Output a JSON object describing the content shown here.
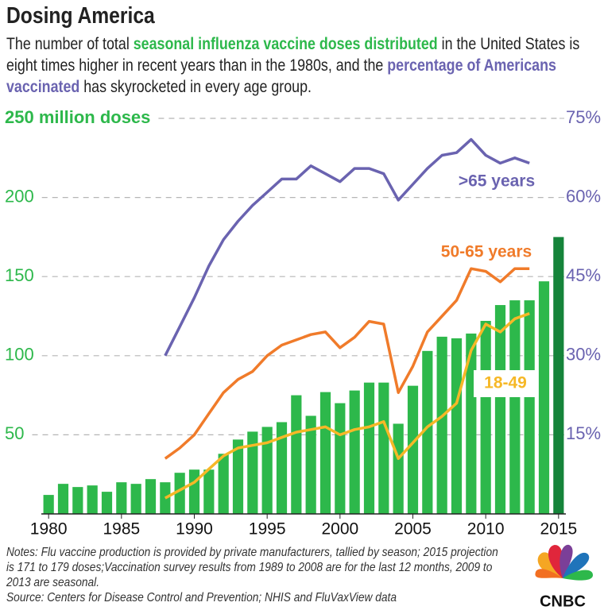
{
  "chart_data": {
    "type": "bar",
    "title": "Dosing America",
    "subtitle": [
      "The number of total ",
      "seasonal influenza vaccine doses distributed",
      " in the United States is eight times higher in recent years than in the 1980s, and the ",
      "percentage of Americans vaccinated",
      " has skyrocketed in every age group."
    ],
    "x": [
      1980,
      1981,
      1982,
      1983,
      1984,
      1985,
      1986,
      1987,
      1988,
      1989,
      1990,
      1991,
      1992,
      1993,
      1994,
      1995,
      1996,
      1997,
      1998,
      1999,
      2000,
      2001,
      2002,
      2003,
      2004,
      2005,
      2006,
      2007,
      2008,
      2009,
      2010,
      2011,
      2012,
      2013,
      2014,
      2015
    ],
    "xlim": [
      1979.5,
      2015.5
    ],
    "xticks": [
      1980,
      1985,
      1990,
      1995,
      2000,
      2005,
      2010,
      2015
    ],
    "ylim": [
      0,
      250
    ],
    "yticks": [
      50,
      100,
      150,
      200,
      {
        "value": 250,
        "label": "250 million doses"
      }
    ],
    "y2lim": [
      0,
      75
    ],
    "y2ticks": [
      {
        "value": 15,
        "label": "15%"
      },
      {
        "value": 30,
        "label": "30%"
      },
      {
        "value": 45,
        "label": "45%"
      },
      {
        "value": 60,
        "label": "60%"
      },
      {
        "value": 75,
        "label": "75%"
      }
    ],
    "grid": true,
    "values": [
      12,
      19,
      17,
      18,
      14,
      20,
      19,
      22,
      20,
      26,
      28,
      28,
      38,
      47,
      52,
      55,
      58,
      75,
      62,
      77,
      70,
      78,
      83,
      83,
      57,
      81,
      103,
      112,
      111,
      114,
      122,
      132,
      135,
      135,
      147,
      175
    ],
    "bar_colors": [
      "#2db84b",
      "#2db84b",
      "#2db84b",
      "#2db84b",
      "#2db84b",
      "#2db84b",
      "#2db84b",
      "#2db84b",
      "#2db84b",
      "#2db84b",
      "#2db84b",
      "#2db84b",
      "#2db84b",
      "#2db84b",
      "#2db84b",
      "#2db84b",
      "#2db84b",
      "#2db84b",
      "#2db84b",
      "#2db84b",
      "#2db84b",
      "#2db84b",
      "#2db84b",
      "#2db84b",
      "#2db84b",
      "#2db84b",
      "#2db84b",
      "#2db84b",
      "#2db84b",
      "#2db84b",
      "#2db84b",
      "#2db84b",
      "#2db84b",
      "#2db84b",
      "#2db84b",
      "#15843a"
    ],
    "series": [
      {
        "name": ">65 years",
        "color": "#6a63b0",
        "axis": "y2",
        "type": "line",
        "values": [
          null,
          null,
          null,
          null,
          null,
          null,
          null,
          null,
          30,
          35.5,
          41,
          47,
          52,
          55.5,
          58.5,
          61,
          63.5,
          63.5,
          66,
          64.5,
          63,
          65.5,
          65.5,
          64.5,
          59.5,
          62.5,
          65.5,
          68,
          68.5,
          71,
          68,
          66.5,
          67.5,
          66.5,
          null,
          null
        ]
      },
      {
        "name": "50-65 years",
        "color": "#f07b2a",
        "axis": "y2",
        "type": "line",
        "values": [
          null,
          null,
          null,
          null,
          null,
          null,
          null,
          null,
          10.5,
          12.5,
          15,
          19,
          23,
          25.5,
          27,
          30,
          32,
          33,
          34,
          34.5,
          31.5,
          33.5,
          36.5,
          36,
          23,
          28,
          34.5,
          37.5,
          40.5,
          46.5,
          46,
          44,
          46.5,
          46.5,
          null,
          null
        ]
      },
      {
        "name": "18-49",
        "color": "#f6b827",
        "axis": "y2",
        "type": "line",
        "values": [
          null,
          null,
          null,
          null,
          null,
          null,
          null,
          null,
          3,
          4.5,
          6,
          8.5,
          11,
          12.5,
          13,
          13.5,
          14.5,
          15.5,
          16,
          16.5,
          15,
          16,
          16.5,
          17.5,
          10.5,
          13.5,
          16.5,
          18.5,
          21,
          31,
          36,
          34.5,
          37,
          38,
          null,
          null
        ]
      }
    ],
    "notes": "Notes: Flu vaccine production is provided by private manufacturers, tallied by season; 2015 projection is 171 to 179 doses;Vaccination survey results from 1989 to 2008 are for the last 12 months, 2009 to 2013 are seasonal.",
    "source": "Source: Centers for Disease Control and Prevention; NHIS and FluVaxView data",
    "logo": "CNBC"
  }
}
